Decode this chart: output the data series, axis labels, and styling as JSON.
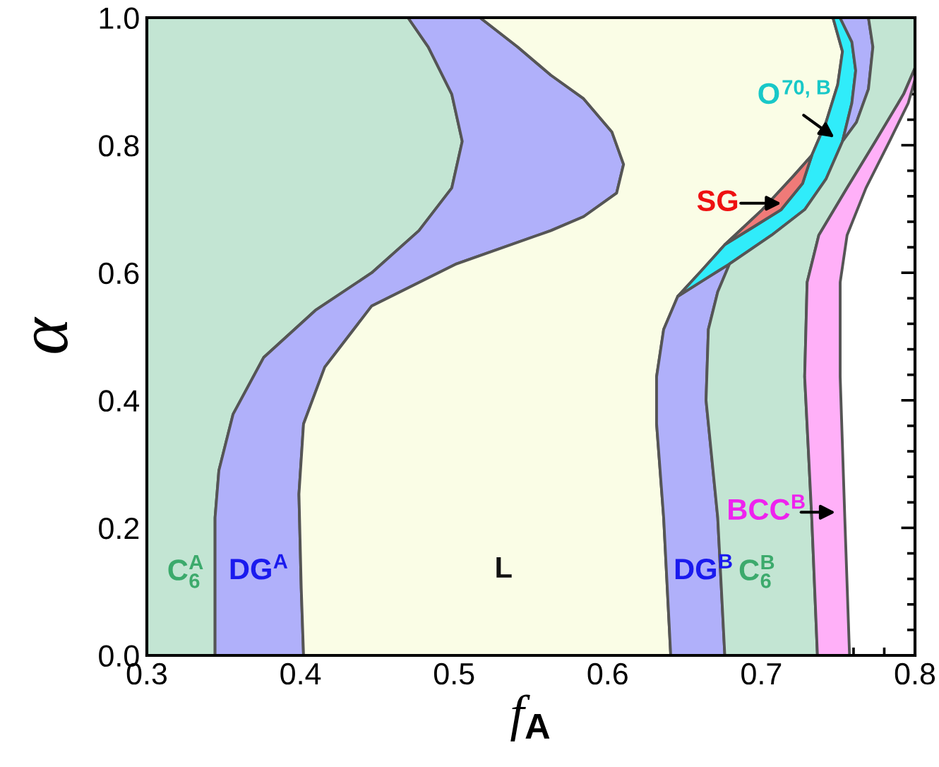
{
  "chart_data": {
    "type": "area",
    "xlabel": "f$_{A}$",
    "ylabel": "α",
    "xlim": [
      0.3,
      0.8
    ],
    "ylim": [
      0.0,
      1.0
    ],
    "xticks": [
      0.3,
      0.4,
      0.5,
      0.6,
      0.7,
      0.8
    ],
    "yticks": [
      {
        "value": 0,
        "label": "0.0"
      },
      0.2,
      0.4,
      0.6,
      0.8,
      {
        "value": 1,
        "label": "1.0"
      }
    ],
    "grid": false,
    "legend": false,
    "series": [
      {
        "color": "#c3e5d3",
        "x": [
          0.3,
          0.3444,
          0.3444,
          0.3469,
          0.3561,
          0.376,
          0.4097,
          0.4464,
          0.4771,
          0.4985,
          0.5053,
          0.4985,
          0.4832,
          0.47,
          0.3
        ],
        "values": [
          0,
          0,
          0.216,
          0.29,
          0.378,
          0.467,
          0.541,
          0.6,
          0.666,
          0.733,
          0.806,
          0.88,
          0.954,
          1.0,
          1.0
        ]
      },
      {
        "color": "#b0b0fa",
        "x": [
          0.3444,
          0.3444,
          0.3469,
          0.3561,
          0.376,
          0.4097,
          0.4464,
          0.4771,
          0.4985,
          0.5053,
          0.4985,
          0.4832,
          0.47,
          0.5169,
          0.5414,
          0.5629,
          0.5843,
          0.6027,
          0.6103,
          0.6058,
          0.5843,
          0.5629,
          0.5016,
          0.4464,
          0.4158,
          0.402,
          0.399,
          0.4005,
          0.402
        ],
        "values": [
          0,
          0.216,
          0.29,
          0.378,
          0.467,
          0.541,
          0.6,
          0.666,
          0.733,
          0.806,
          0.88,
          0.954,
          1.0,
          1.0,
          0.954,
          0.91,
          0.873,
          0.821,
          0.77,
          0.725,
          0.688,
          0.666,
          0.614,
          0.548,
          0.452,
          0.363,
          0.253,
          0.105,
          0
        ]
      },
      {
        "color": "#fafde6",
        "x": [
          0.402,
          0.4005,
          0.399,
          0.402,
          0.4158,
          0.4464,
          0.5016,
          0.5629,
          0.5843,
          0.6058,
          0.6103,
          0.6027,
          0.5843,
          0.5629,
          0.5414,
          0.5169,
          0.7466,
          0.7528,
          0.7497,
          0.7421,
          0.7328,
          0.7206,
          0.7006,
          0.6762,
          0.6609,
          0.6456,
          0.6364,
          0.6318,
          0.6318,
          0.6364,
          0.641
        ],
        "values": [
          0,
          0.105,
          0.253,
          0.363,
          0.452,
          0.548,
          0.614,
          0.666,
          0.688,
          0.725,
          0.77,
          0.821,
          0.873,
          0.91,
          0.954,
          1.0,
          1.0,
          0.947,
          0.895,
          0.836,
          0.784,
          0.751,
          0.699,
          0.644,
          0.603,
          0.563,
          0.511,
          0.437,
          0.363,
          0.216,
          0
        ]
      },
      {
        "color": "#b0b0fa",
        "x": [
          0.641,
          0.6364,
          0.6318,
          0.6318,
          0.6364,
          0.6456,
          0.664,
          0.6793,
          0.6716,
          0.6655,
          0.664,
          0.6716,
          0.6762
        ],
        "values": [
          0,
          0.216,
          0.363,
          0.437,
          0.511,
          0.563,
          0.591,
          0.614,
          0.57,
          0.511,
          0.4,
          0.216,
          0
        ]
      },
      {
        "color": "#30ecfa",
        "x": [
          0.6456,
          0.6609,
          0.6762,
          0.6936,
          0.7129,
          0.7268,
          0.7328,
          0.7421,
          0.7497,
          0.7528,
          0.7466,
          0.7512,
          0.7589,
          0.7614,
          0.7589,
          0.7528,
          0.7421,
          0.7282,
          0.7067,
          0.6793,
          0.664
        ],
        "values": [
          0.563,
          0.603,
          0.644,
          0.67,
          0.699,
          0.74,
          0.784,
          0.836,
          0.895,
          0.947,
          1.0,
          1.0,
          0.962,
          0.917,
          0.866,
          0.806,
          0.747,
          0.699,
          0.659,
          0.614,
          0.591
        ]
      },
      {
        "color": "#f07a78",
        "x": [
          0.6762,
          0.7006,
          0.7206,
          0.7328,
          0.7268,
          0.7129,
          0.6936
        ],
        "values": [
          0.644,
          0.699,
          0.751,
          0.784,
          0.74,
          0.699,
          0.67
        ]
      },
      {
        "color": "#b0b0fa",
        "x": [
          0.7528,
          0.7589,
          0.7614,
          0.7589,
          0.7512,
          0.7697,
          0.7726,
          0.7697,
          0.7619
        ],
        "values": [
          0.806,
          0.866,
          0.917,
          0.962,
          1.0,
          1.0,
          0.954,
          0.888,
          0.836
        ]
      },
      {
        "color": "#c3e5d3",
        "x": [
          0.6762,
          0.6716,
          0.664,
          0.6655,
          0.6716,
          0.6793,
          0.7067,
          0.7282,
          0.7421,
          0.7528,
          0.7619,
          0.7697,
          0.7726,
          0.7697,
          0.8,
          0.8,
          0.7926,
          0.7742,
          0.7558,
          0.7374,
          0.7298,
          0.7282,
          0.7328,
          0.7365
        ],
        "values": [
          0,
          0.216,
          0.4,
          0.511,
          0.57,
          0.614,
          0.659,
          0.699,
          0.747,
          0.806,
          0.836,
          0.888,
          0.954,
          1.0,
          1.0,
          0.921,
          0.88,
          0.806,
          0.733,
          0.659,
          0.585,
          0.437,
          0.216,
          0
        ]
      },
      {
        "color": "#ffb0f8",
        "x": [
          0.7365,
          0.7328,
          0.7282,
          0.7298,
          0.7374,
          0.7558,
          0.7742,
          0.7926,
          0.8,
          0.8,
          0.7956,
          0.7834,
          0.7681,
          0.7558,
          0.7513,
          0.7513,
          0.7543,
          0.7574
        ],
        "values": [
          0,
          0.216,
          0.437,
          0.585,
          0.659,
          0.733,
          0.806,
          0.88,
          0.921,
          0.903,
          0.866,
          0.806,
          0.733,
          0.659,
          0.585,
          0.437,
          0.216,
          0
        ]
      }
    ],
    "annotations": [
      "C$^{A}$$_{6}$",
      "DG$^{A}$",
      "L",
      "DG$^{B}$",
      "C$^{B}$$_{6}$",
      "BCC$^{B}$",
      "SG",
      "O$^{70, B}$"
    ]
  }
}
